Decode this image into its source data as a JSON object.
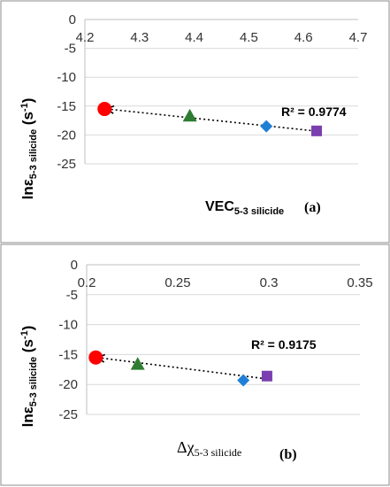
{
  "colors": {
    "circle": "#ff0000",
    "triangle": "#2e7d32",
    "diamond": "#1f7fd6",
    "square": "#7b3fb0",
    "trendline": "#000000"
  },
  "chart_data": [
    {
      "type": "scatter",
      "panel_label": "(a)",
      "xlabel": {
        "main": "VEC",
        "sub": "5-3 silicide"
      },
      "ylabel": {
        "main": "ln",
        "accent_char": "ε",
        "sub": "5-3 silicide",
        "unit_open": " (s",
        "unit_exp": "-1",
        "unit_close": ")"
      },
      "annotation": "R² = 0.9774",
      "xlim": [
        4.2,
        4.7
      ],
      "ylim": [
        -25,
        0
      ],
      "x_ticks": [
        "4.2",
        "4.3",
        "4.4",
        "4.5",
        "4.6",
        "4.7"
      ],
      "y_ticks": [
        "0",
        "-5",
        "-10",
        "-15",
        "-20",
        "-25"
      ],
      "x_axis_position": "top",
      "trendline": {
        "style": "dotted",
        "start": [
          4.24,
          -15.5
        ],
        "end": [
          4.62,
          -19.3
        ]
      },
      "points": [
        {
          "x": 4.236,
          "y": -15.5,
          "marker": "circle",
          "color": "#ff0000"
        },
        {
          "x": 4.392,
          "y": -16.7,
          "marker": "triangle",
          "color": "#2e7d32"
        },
        {
          "x": 4.532,
          "y": -18.5,
          "marker": "diamond",
          "color": "#1f7fd6"
        },
        {
          "x": 4.624,
          "y": -19.3,
          "marker": "square",
          "color": "#7b3fb0"
        }
      ]
    },
    {
      "type": "scatter",
      "panel_label": "(b)",
      "xlabel": {
        "main": "Δχ",
        "sub": "5-3 silicide"
      },
      "ylabel": {
        "main": "ln",
        "accent_char": "ε",
        "sub": "5-3 silicide",
        "unit_open": " (s",
        "unit_exp": "-1",
        "unit_close": ")"
      },
      "annotation": "R² = 0.9175",
      "xlim": [
        0.2,
        0.35
      ],
      "ylim": [
        -25,
        0
      ],
      "x_ticks": [
        "0.2",
        "0.25",
        "0.3",
        "0.35"
      ],
      "y_ticks": [
        "0",
        "-5",
        "-10",
        "-15",
        "-20",
        "-25"
      ],
      "x_axis_position": "top",
      "trendline": {
        "style": "dotted",
        "start": [
          0.206,
          -15.5
        ],
        "end": [
          0.297,
          -19.0
        ]
      },
      "points": [
        {
          "x": 0.205,
          "y": -15.5,
          "marker": "circle",
          "color": "#ff0000"
        },
        {
          "x": 0.228,
          "y": -16.6,
          "marker": "triangle",
          "color": "#2e7d32"
        },
        {
          "x": 0.286,
          "y": -19.3,
          "marker": "diamond",
          "color": "#1f7fd6"
        },
        {
          "x": 0.299,
          "y": -18.6,
          "marker": "square",
          "color": "#7b3fb0"
        }
      ]
    }
  ]
}
